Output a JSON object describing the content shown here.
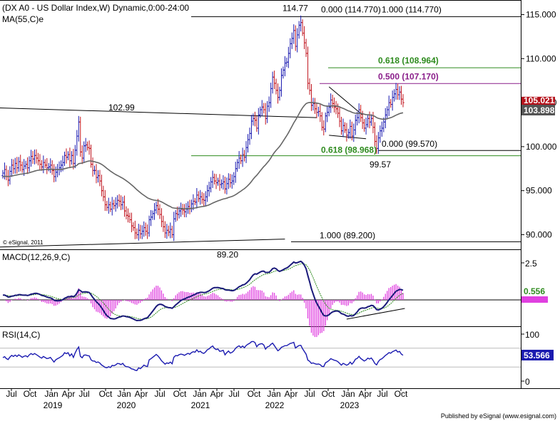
{
  "chart_data": {
    "type": "candlestick",
    "title": "(DX A0 - US Dollar Index,W) Dynamic,0:00-24:00",
    "ma_label": "MA(55,C)e",
    "copyright": "© eSignal, 2011",
    "publisher": "Published by eSignal (www.esignal.com)",
    "x_axis": {
      "month_ticks": [
        "Jul",
        "Oct",
        "Jan",
        "Apr",
        "Jul",
        "Oct",
        "Jan",
        "Apr",
        "Jul",
        "Oct",
        "Jan",
        "Apr",
        "Jul",
        "Oct",
        "Jan",
        "Apr",
        "Jul",
        "Oct",
        "Jan",
        "Apr",
        "Jul",
        "Oct"
      ],
      "year_labels": [
        "2019",
        "2020",
        "2021",
        "2022",
        "2023"
      ]
    },
    "price_pane": {
      "ylim": [
        88.5,
        116.5
      ],
      "y_ticks": [
        "115.000",
        "110.000",
        "105.000",
        "100.000",
        "95.000",
        "90.000"
      ],
      "last_price": "105.021",
      "ma_value": "103.898",
      "peak_labels": [
        {
          "text": "114.77",
          "value": 114.77
        },
        {
          "text": "102.99",
          "value": 102.99
        },
        {
          "text": "99.57",
          "value": 99.57
        },
        {
          "text": "89.20",
          "value": 89.2
        }
      ],
      "fib_levels": [
        {
          "text": "0.000 (114.770)",
          "value": 114.77,
          "color": "#000000"
        },
        {
          "text": "1.000 (114.770)",
          "value": 114.77,
          "color": "#000000"
        },
        {
          "text": "0.618 (108.964)",
          "value": 108.964,
          "color": "#2e8b1e"
        },
        {
          "text": "0.500 (107.170)",
          "value": 107.17,
          "color": "#8a1e8a"
        },
        {
          "text": "0.000 (99.570)",
          "value": 99.57,
          "color": "#000000"
        },
        {
          "text": "0.618 (98.968)",
          "value": 98.968,
          "color": "#2e8b1e"
        },
        {
          "text": "1.000 (89.200)",
          "value": 89.2,
          "color": "#000000"
        }
      ],
      "weekly_closes": [
        97.0,
        97.4,
        96.6,
        96.2,
        97.2,
        97.9,
        97.5,
        98.1,
        97.6,
        98.3,
        97.9,
        97.4,
        97.8,
        98.0,
        97.6,
        98.4,
        98.9,
        98.6,
        99.0,
        98.7,
        98.4,
        98.0,
        97.7,
        98.2,
        97.9,
        97.6,
        97.7,
        97.9,
        97.3,
        96.6,
        97.1,
        97.4,
        97.6,
        97.9,
        98.2,
        99.0,
        98.8,
        99.1,
        98.4,
        99.0,
        98.1,
        99.6,
        101.2,
        102.8,
        99.4,
        98.7,
        100.1,
        100.2,
        99.9,
        99.8,
        98.0,
        97.3,
        97.3,
        96.5,
        96.7,
        96.1,
        95.0,
        94.3,
        93.4,
        93.1,
        93.4,
        92.9,
        93.5,
        93.3,
        93.5,
        93.9,
        93.8,
        93.4,
        93.7,
        92.7,
        92.2,
        92.1,
        91.7,
        91.0,
        90.8,
        90.2,
        90.0,
        90.5,
        90.1,
        90.4,
        90.8,
        90.4,
        90.2,
        91.7,
        92.0,
        92.4,
        92.8,
        93.3,
        92.9,
        92.3,
        91.5,
        90.9,
        90.2,
        90.5,
        90.3,
        90.6,
        90.0,
        91.8,
        92.4,
        92.3,
        92.7,
        92.9,
        92.8,
        92.6,
        92.9,
        93.2,
        93.0,
        93.5,
        93.8,
        93.7,
        94.5,
        94.1,
        94.3,
        94.0,
        93.9,
        94.3,
        95.0,
        95.3,
        96.0,
        96.5,
        96.1,
        95.9,
        96.1,
        95.7,
        95.8,
        96.0,
        95.2,
        95.8,
        96.3,
        95.9,
        96.1,
        96.6,
        97.5,
        98.2,
        98.7,
        98.4,
        99.1,
        98.8,
        99.9,
        100.8,
        101.5,
        102.9,
        103.2,
        103.0,
        102.1,
        103.6,
        104.2,
        104.5,
        104.2,
        103.2,
        104.6,
        105.0,
        106.6,
        107.9,
        107.2,
        106.4,
        105.6,
        106.4,
        108.1,
        108.7,
        109.5,
        109.6,
        110.6,
        111.7,
        112.3,
        113.2,
        111.4,
        112.7,
        113.8,
        114.1,
        112.9,
        111.8,
        110.6,
        107.2,
        106.4,
        104.7,
        104.9,
        104.3,
        103.9,
        104.0,
        103.5,
        102.2,
        102.0,
        103.5,
        103.9,
        104.5,
        105.3,
        104.9,
        104.5,
        104.3,
        103.8,
        102.9,
        101.8,
        102.4,
        101.9,
        101.3,
        101.6,
        102.3,
        101.2,
        101.9,
        103.0,
        103.3,
        104.2,
        103.3,
        102.7,
        102.1,
        102.5,
        103.2,
        102.8,
        103.2,
        102.2,
        100.6,
        99.8,
        101.0,
        101.8,
        102.1,
        102.8,
        103.6,
        104.2,
        105.0,
        104.8,
        105.6,
        106.0,
        106.5,
        105.9,
        106.2,
        105.4,
        105.0
      ]
    },
    "macd_pane": {
      "label": "MACD(12,26,9,C)",
      "y_ticks": [
        "2.5"
      ],
      "macd_value": "0.556"
    },
    "rsi_pane": {
      "label": "RSI(14,C)",
      "y_ticks": [
        "100",
        "0"
      ],
      "rsi_value": "53.566",
      "overbought": 70,
      "oversold": 30
    }
  }
}
